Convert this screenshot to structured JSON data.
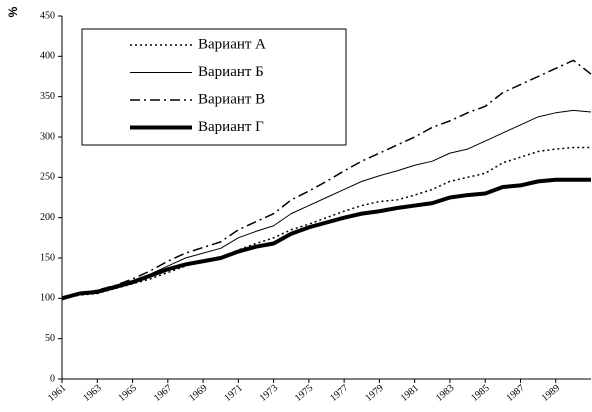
{
  "chart_data": {
    "type": "line",
    "ylabel": "%",
    "x": [
      1961,
      1962,
      1963,
      1964,
      1965,
      1966,
      1967,
      1968,
      1969,
      1970,
      1971,
      1972,
      1973,
      1974,
      1975,
      1976,
      1977,
      1978,
      1979,
      1980,
      1981,
      1982,
      1983,
      1984,
      1985,
      1986,
      1987,
      1988,
      1989,
      1990,
      1991
    ],
    "xlim": [
      1961,
      1991
    ],
    "xticks": [
      1961,
      1963,
      1965,
      1967,
      1969,
      1971,
      1973,
      1975,
      1977,
      1979,
      1981,
      1983,
      1985,
      1987,
      1989
    ],
    "ylim": [
      0,
      450
    ],
    "yticks": [
      0,
      50,
      100,
      150,
      200,
      250,
      300,
      350,
      400,
      450
    ],
    "legend": "upper-left",
    "series": [
      {
        "name": "Вариант А",
        "color": "#000000",
        "linestyle": "dotted",
        "linewidth": 1.5,
        "values": [
          100,
          104,
          106,
          112,
          118,
          124,
          132,
          140,
          146,
          150,
          160,
          168,
          175,
          185,
          192,
          200,
          208,
          215,
          220,
          222,
          228,
          235,
          245,
          250,
          255,
          268,
          275,
          282,
          285,
          287,
          287
        ]
      },
      {
        "name": "Вариант Б",
        "color": "#000000",
        "linestyle": "solid",
        "linewidth": 1,
        "values": [
          100,
          106,
          110,
          116,
          122,
          130,
          140,
          150,
          156,
          162,
          175,
          183,
          190,
          205,
          215,
          225,
          235,
          245,
          252,
          258,
          265,
          270,
          280,
          285,
          295,
          305,
          315,
          325,
          330,
          333,
          331
        ]
      },
      {
        "name": "Вариант В",
        "color": "#000000",
        "linestyle": "dashdot",
        "linewidth": 1.5,
        "values": [
          100,
          106,
          110,
          116,
          124,
          134,
          146,
          156,
          163,
          170,
          185,
          195,
          205,
          222,
          233,
          245,
          258,
          270,
          280,
          290,
          300,
          312,
          320,
          330,
          338,
          355,
          365,
          375,
          385,
          395,
          378
        ]
      },
      {
        "name": "Вариант Г",
        "color": "#000000",
        "linestyle": "solid",
        "linewidth": 4,
        "values": [
          100,
          106,
          108,
          114,
          120,
          128,
          136,
          142,
          146,
          150,
          158,
          164,
          168,
          180,
          188,
          194,
          200,
          205,
          208,
          212,
          215,
          218,
          225,
          228,
          230,
          238,
          240,
          245,
          247,
          247,
          247
        ]
      }
    ]
  }
}
